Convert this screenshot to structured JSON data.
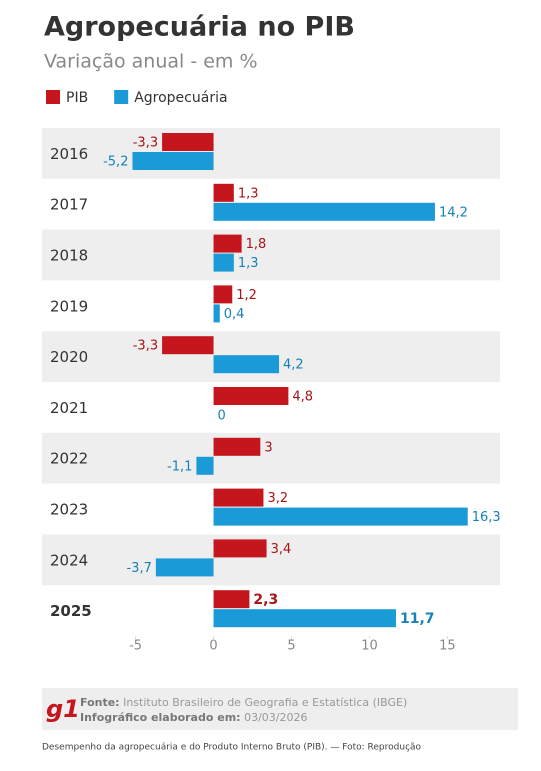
{
  "chart_data": {
    "type": "hbar",
    "title": "Agropecuária no PIB",
    "subtitle": "Variação anual - em %",
    "categories": [
      "2016",
      "2017",
      "2018",
      "2019",
      "2020",
      "2021",
      "2022",
      "2023",
      "2024",
      "2025"
    ],
    "series": [
      {
        "name": "PIB",
        "color": "#c4161c",
        "values": [
          -3.3,
          1.3,
          1.8,
          1.2,
          -3.3,
          4.8,
          3,
          3.2,
          3.4,
          2.3
        ],
        "value_labels": [
          "-3,3",
          "1,3",
          "1,8",
          "1,2",
          "-3,3",
          "4,8",
          "3",
          "3,2",
          "3,4",
          "2,3"
        ]
      },
      {
        "name": "Agropecuária",
        "color": "#1a9ad6",
        "values": [
          -5.2,
          14.2,
          1.3,
          0.4,
          4.2,
          0,
          -1.1,
          16.3,
          -3.7,
          11.7
        ],
        "value_labels": [
          "-5,2",
          "14,2",
          "1,3",
          "0,4",
          "4,2",
          "0",
          "-1,1",
          "16,3",
          "-3,7",
          "11,7"
        ]
      }
    ],
    "xlim": [
      -6,
      18.5
    ],
    "xticks": [
      -5,
      0,
      5,
      10,
      15
    ],
    "grid": false,
    "legend": "top-left"
  },
  "footer": {
    "logo": "g1",
    "source_label": "Fonte:",
    "source": "Instituto Brasileiro de Geografia e Estatística (IBGE)",
    "made_label": "Infográfico elaborado em:",
    "made_date": "03/03/2026"
  },
  "caption": "Desempenho da agropecuária e do Produto Interno Bruto (PIB). — Foto: Reprodução"
}
